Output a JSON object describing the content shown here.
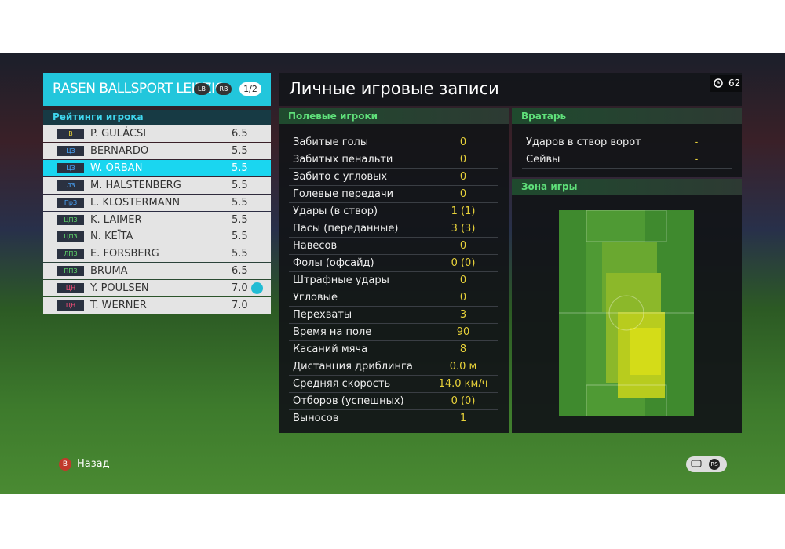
{
  "header": {
    "team": "RASEN BALLSPORT LEIPZIG",
    "badges": [
      "LB",
      "RB"
    ],
    "page": "1/2"
  },
  "ratings": {
    "title": "Рейтинги игрока",
    "selected": 2,
    "players": [
      {
        "pos": "В",
        "pos_color": "#e8d23a",
        "name": "P. GULÁCSI",
        "rating": "6.5"
      },
      {
        "pos": "ЦЗ",
        "pos_color": "#4aa8ff",
        "name": "BERNARDO",
        "rating": "5.5"
      },
      {
        "pos": "ЦЗ",
        "pos_color": "#4aa8ff",
        "name": "W. ORBAN",
        "rating": "5.5"
      },
      {
        "pos": "ЛЗ",
        "pos_color": "#4aa8ff",
        "name": "M. HALSTENBERG",
        "rating": "5.5"
      },
      {
        "pos": "ПрЗ",
        "pos_color": "#4aa8ff",
        "name": "L. KLOSTERMANN",
        "rating": "5.5"
      },
      {
        "pos": "ЦПЗ",
        "pos_color": "#5fd86a",
        "name": "K. LAIMER",
        "rating": "5.5"
      },
      {
        "pos": "ЦПЗ",
        "pos_color": "#5fd86a",
        "name": "N. KEÏTA",
        "rating": "5.5"
      },
      {
        "pos": "ЛПЗ",
        "pos_color": "#5fd86a",
        "name": "E. FORSBERG",
        "rating": "5.5"
      },
      {
        "pos": "ППЗ",
        "pos_color": "#5fd86a",
        "name": "BRUMA",
        "rating": "6.5"
      },
      {
        "pos": "ЦН",
        "pos_color": "#ff4f7a",
        "name": "Y. POULSEN",
        "rating": "7.0",
        "star": true
      },
      {
        "pos": "ЦН",
        "pos_color": "#ff4f7a",
        "name": "T. WERNER",
        "rating": "7.0"
      }
    ]
  },
  "records": {
    "title": "Личные игровые записи",
    "timer": "62",
    "field": {
      "title": "Полевые игроки",
      "rows": [
        [
          "Забитые голы",
          "0"
        ],
        [
          "Забитых пенальти",
          "0"
        ],
        [
          "Забито с угловых",
          "0"
        ],
        [
          "Голевые передачи",
          "0"
        ],
        [
          "Удары (в створ)",
          "1 (1)"
        ],
        [
          "Пасы (переданные)",
          "3 (3)"
        ],
        [
          "Навесов",
          "0"
        ],
        [
          "Фолы (офсайд)",
          "0 (0)"
        ],
        [
          "Штрафные удары",
          "0"
        ],
        [
          "Угловые",
          "0"
        ],
        [
          "Перехваты",
          "3"
        ],
        [
          "Время на поле",
          "90"
        ],
        [
          "Касаний мяча",
          "8"
        ],
        [
          "Дистанция дриблинга",
          "0.0 м"
        ],
        [
          "Средняя скорость",
          "14.0 км/ч"
        ],
        [
          "Отборов (успешных)",
          "0 (0)"
        ],
        [
          "Выносов",
          "1"
        ]
      ]
    },
    "goalkeeper": {
      "title": "Вратарь",
      "rows": [
        [
          "Ударов в створ ворот",
          "-"
        ],
        [
          "Сейвы",
          "-"
        ]
      ]
    },
    "zone": {
      "title": "Зона игры"
    }
  },
  "footer": {
    "back_button": "B",
    "back": "Назад",
    "rs": "RS"
  }
}
